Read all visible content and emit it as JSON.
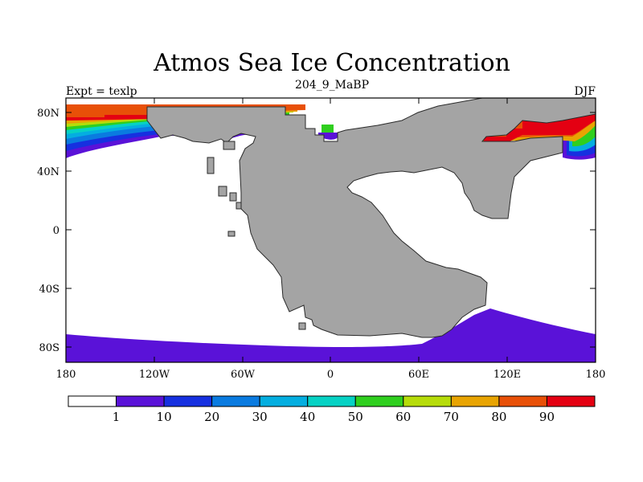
{
  "title": "Atmos Sea Ice Concentration",
  "left_label": "Expt = texlp",
  "center_label": "204_9_MaBP",
  "right_label": "DJF",
  "lat_ticks": [
    "80N",
    "40N",
    "0",
    "40S",
    "80S"
  ],
  "lon_ticks": [
    "180",
    "120W",
    "60W",
    "0",
    "60E",
    "120E",
    "180"
  ],
  "colorbar": {
    "colors": [
      "#ffffff",
      "#5a12d8",
      "#1630e0",
      "#0a7be0",
      "#04aee0",
      "#06d2c4",
      "#2fcf1e",
      "#b6dc0a",
      "#e8a402",
      "#e85008",
      "#e40012"
    ],
    "labels": [
      "1",
      "10",
      "20",
      "30",
      "40",
      "50",
      "60",
      "70",
      "80",
      "90"
    ]
  },
  "colors": {
    "land": "#a4a4a4",
    "ocean": "#ffffff",
    "ice_low": "#5a12d8",
    "ice_high": "#e40012"
  }
}
